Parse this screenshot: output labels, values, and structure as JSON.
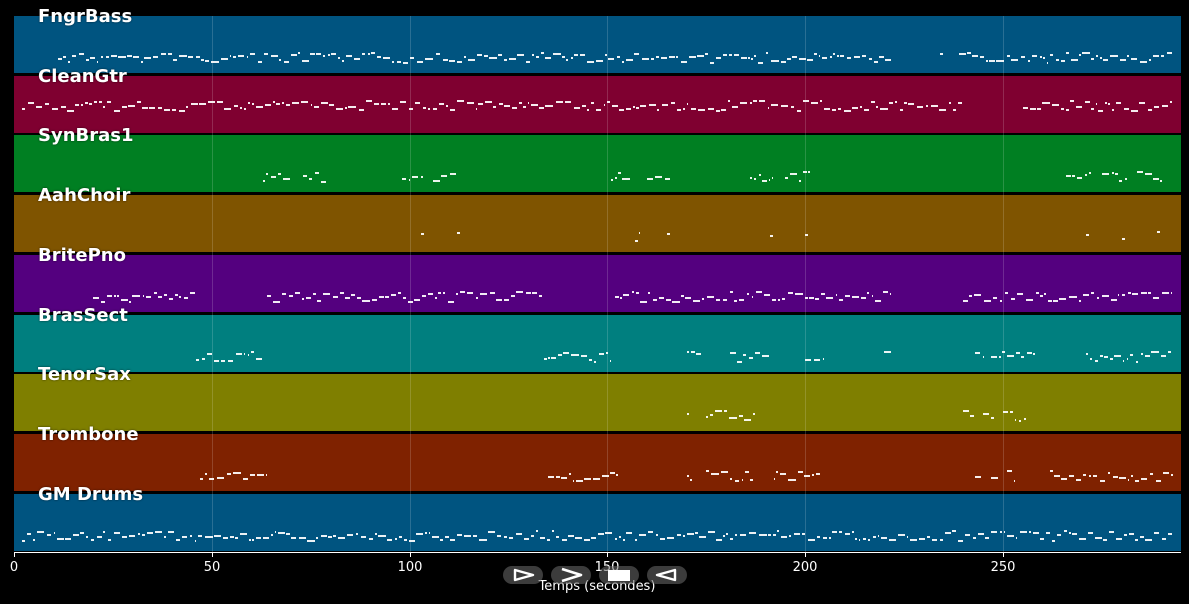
{
  "tracks": [
    {
      "name": "FngrBass",
      "color": "#005480"
    },
    {
      "name": "CleanGtr",
      "color": "#7f0030"
    },
    {
      "name": "SynBras1",
      "color": "#007f22"
    },
    {
      "name": "AahChoir",
      "color": "#7f5400"
    },
    {
      "name": "BritePno",
      "color": "#54007f"
    },
    {
      "name": "BrasSect",
      "color": "#007f7f"
    },
    {
      "name": "TenorSax",
      "color": "#7f7f00"
    },
    {
      "name": "Trombone",
      "color": "#7f2200"
    },
    {
      "name": "GM Drums",
      "color": "#005480"
    }
  ],
  "note_segments": [
    [
      [
        11,
        222
      ],
      [
        234,
        235
      ],
      [
        239,
        293
      ]
    ],
    [
      [
        2,
        240
      ],
      [
        255,
        293
      ]
    ],
    [
      [
        63,
        70
      ],
      [
        73,
        79
      ],
      [
        98,
        103
      ],
      [
        106,
        112
      ],
      [
        151,
        156
      ],
      [
        160,
        166
      ],
      [
        186,
        192
      ],
      [
        195,
        201
      ],
      [
        266,
        272
      ],
      [
        275,
        281
      ],
      [
        284,
        290
      ]
    ],
    [
      [
        103,
        104
      ],
      [
        112,
        113
      ],
      [
        157,
        158
      ],
      [
        165,
        166
      ],
      [
        191,
        192
      ],
      [
        200,
        201
      ],
      [
        271,
        272
      ],
      [
        280,
        281
      ],
      [
        289,
        290
      ]
    ],
    [
      [
        20,
        46
      ],
      [
        64,
        134
      ],
      [
        152,
        222
      ],
      [
        240,
        293
      ]
    ],
    [
      [
        46,
        63
      ],
      [
        134,
        151
      ],
      [
        170,
        174
      ],
      [
        181,
        191
      ],
      [
        200,
        205
      ],
      [
        220,
        222
      ],
      [
        243,
        245
      ],
      [
        247,
        251
      ],
      [
        251,
        258
      ],
      [
        271,
        293
      ]
    ],
    [
      [
        170,
        171
      ],
      [
        175,
        187
      ],
      [
        240,
        243
      ],
      [
        245,
        248
      ],
      [
        250,
        253
      ],
      [
        254,
        256
      ]
    ],
    [
      [
        47,
        64
      ],
      [
        135,
        153
      ],
      [
        170,
        171
      ],
      [
        175,
        187
      ],
      [
        192,
        204
      ],
      [
        243,
        245
      ],
      [
        247,
        249
      ],
      [
        251,
        253
      ],
      [
        262,
        293
      ]
    ],
    [
      [
        2,
        293
      ]
    ]
  ],
  "x_axis": {
    "title": "Temps (secondes)",
    "ticks": [
      0,
      50,
      100,
      150,
      200,
      250
    ],
    "range": [
      0,
      295
    ]
  },
  "controls": [
    {
      "name": "play",
      "icon": "play-outline-icon"
    },
    {
      "name": "next",
      "icon": "chevron-right-icon"
    },
    {
      "name": "stop",
      "icon": "stop-icon"
    },
    {
      "name": "back",
      "icon": "rewind-icon"
    }
  ]
}
